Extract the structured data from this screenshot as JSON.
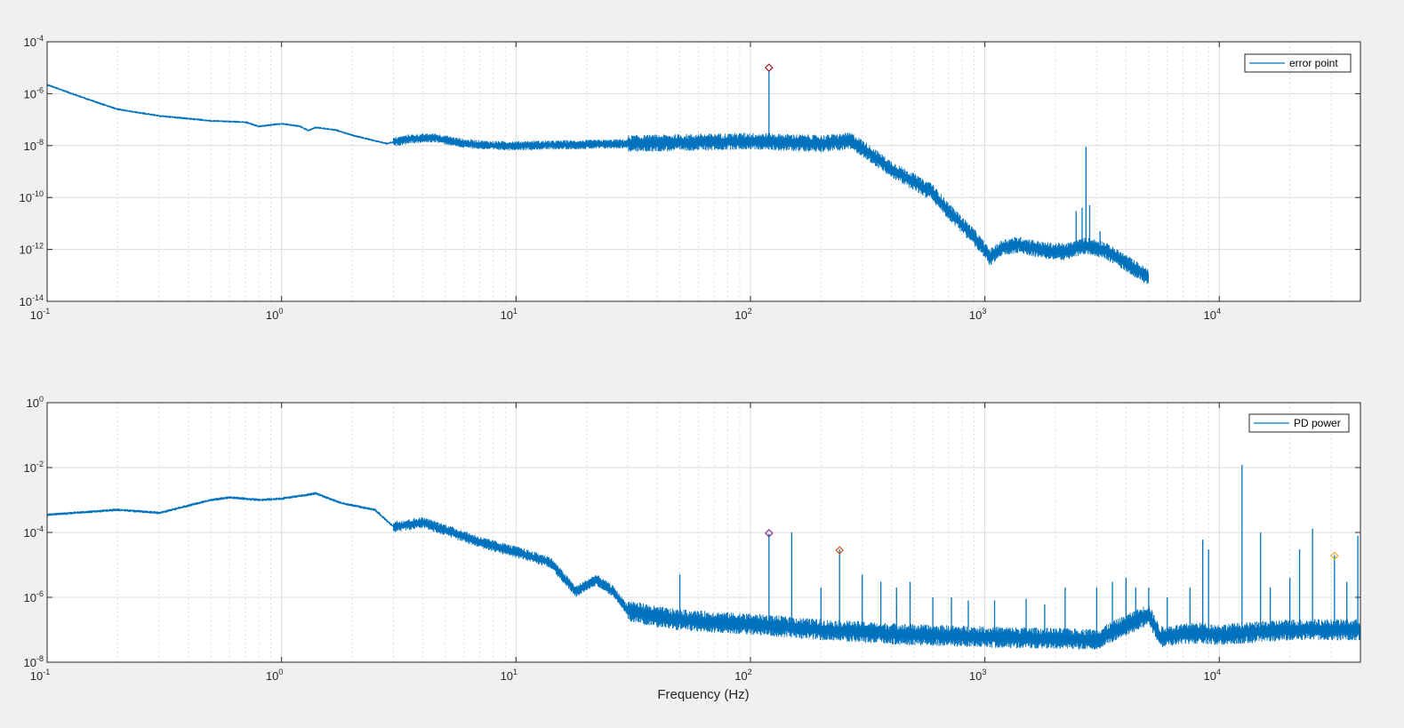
{
  "figure": {
    "background": "#f0f0f0",
    "axes_color": "#262626",
    "grid_color": "#dcdcdc",
    "line_color": "#0072bd"
  },
  "chart_data": [
    {
      "type": "line",
      "name": "top-panel",
      "xscale": "log",
      "yscale": "log",
      "xlim": [
        0.1,
        40000
      ],
      "ylim": [
        1e-14,
        0.0001
      ],
      "x_tick_labels": [
        "10^-1",
        "10^0",
        "10^1",
        "10^2",
        "10^3",
        "10^4"
      ],
      "y_tick_labels": [
        "10^-14",
        "10^-12",
        "10^-10",
        "10^-8",
        "10^-6",
        "10^-4"
      ],
      "grid": "major and minor",
      "legend": {
        "position": "top-right",
        "entries": [
          "error point"
        ]
      },
      "xlabel": "",
      "ylabel": "",
      "series": [
        {
          "name": "error point",
          "color": "#0072bd",
          "x_end": 5000,
          "baseline": [
            [
              0.1,
              2.2e-06
            ],
            [
              0.15,
              6e-07
            ],
            [
              0.2,
              2.5e-07
            ],
            [
              0.3,
              1.4e-07
            ],
            [
              0.5,
              9e-08
            ],
            [
              0.7,
              8e-08
            ],
            [
              0.8,
              5.5e-08
            ],
            [
              1.0,
              7e-08
            ],
            [
              1.2,
              5.5e-08
            ],
            [
              1.3,
              3.8e-08
            ],
            [
              1.4,
              5e-08
            ],
            [
              1.7,
              4e-08
            ],
            [
              2.0,
              2.5e-08
            ],
            [
              2.8,
              1.2e-08
            ],
            [
              3.5,
              1.8e-08
            ],
            [
              4.5,
              2e-08
            ],
            [
              6,
              1.2e-08
            ],
            [
              8,
              1e-08
            ],
            [
              10,
              1e-08
            ],
            [
              20,
              1.1e-08
            ],
            [
              50,
              1.3e-08
            ],
            [
              100,
              1.5e-08
            ],
            [
              200,
              1.2e-08
            ],
            [
              270,
              1.5e-08
            ],
            [
              300,
              8e-09
            ],
            [
              400,
              1.2e-09
            ],
            [
              500,
              4e-10
            ],
            [
              560,
              2e-10
            ],
            [
              580,
              2.2e-10
            ],
            [
              600,
              1.5e-10
            ],
            [
              700,
              3e-11
            ],
            [
              900,
              3e-12
            ],
            [
              1050,
              5e-13
            ],
            [
              1200,
              1.2e-12
            ],
            [
              1400,
              1.5e-12
            ],
            [
              1800,
              9e-13
            ],
            [
              2200,
              8e-13
            ],
            [
              2700,
              1.4e-12
            ],
            [
              3200,
              1e-12
            ],
            [
              4000,
              3e-13
            ],
            [
              5000,
              8e-14
            ]
          ],
          "peaks": [
            [
              120,
              8e-06
            ],
            [
              2700,
              9e-09
            ],
            [
              2600,
              4e-11
            ],
            [
              2800,
              5e-11
            ],
            [
              2450,
              3e-11
            ],
            [
              3100,
              5e-12
            ]
          ]
        }
      ],
      "markers": [
        {
          "x": 120,
          "y": 1e-05,
          "color": "#a2142f"
        }
      ]
    },
    {
      "type": "line",
      "name": "bottom-panel",
      "xscale": "log",
      "yscale": "log",
      "xlim": [
        0.1,
        40000
      ],
      "ylim": [
        1e-08,
        1
      ],
      "x_tick_labels": [
        "10^-1",
        "10^0",
        "10^1",
        "10^2",
        "10^3",
        "10^4"
      ],
      "y_tick_labels": [
        "10^-8",
        "10^-6",
        "10^-4",
        "10^-2",
        "10^0"
      ],
      "grid": "major and minor",
      "legend": {
        "position": "top-right",
        "entries": [
          "PD power"
        ]
      },
      "xlabel": "Frequency (Hz)",
      "ylabel": "",
      "series": [
        {
          "name": "PD power",
          "color": "#0072bd",
          "x_end": 40000,
          "baseline": [
            [
              0.1,
              0.00035
            ],
            [
              0.2,
              0.0005
            ],
            [
              0.3,
              0.0004
            ],
            [
              0.5,
              0.001
            ],
            [
              0.6,
              0.0012
            ],
            [
              0.8,
              0.001
            ],
            [
              1.0,
              0.0011
            ],
            [
              1.4,
              0.0016
            ],
            [
              1.8,
              0.0008
            ],
            [
              2.5,
              0.0005
            ],
            [
              3,
              0.00015
            ],
            [
              4,
              0.0002
            ],
            [
              5,
              0.00012
            ],
            [
              7,
              5e-05
            ],
            [
              10,
              2.5e-05
            ],
            [
              14,
              1.2e-05
            ],
            [
              18,
              1.5e-06
            ],
            [
              22,
              3.5e-06
            ],
            [
              26,
              1.5e-06
            ],
            [
              30,
              4e-07
            ],
            [
              40,
              2.5e-07
            ],
            [
              50,
              2e-07
            ],
            [
              100,
              1.5e-07
            ],
            [
              200,
              1e-07
            ],
            [
              500,
              7e-08
            ],
            [
              1000,
              6e-08
            ],
            [
              3000,
              5e-08
            ],
            [
              5000,
              3e-07
            ],
            [
              5600,
              6e-08
            ],
            [
              8000,
              8e-08
            ],
            [
              10000,
              7e-08
            ],
            [
              20000,
              1e-07
            ],
            [
              40000,
              1e-07
            ]
          ],
          "peaks": [
            [
              50,
              5e-06
            ],
            [
              120,
              9e-05
            ],
            [
              150,
              0.0001
            ],
            [
              200,
              2e-06
            ],
            [
              240,
              3e-05
            ],
            [
              300,
              5e-06
            ],
            [
              360,
              3e-06
            ],
            [
              420,
              2e-06
            ],
            [
              480,
              3e-06
            ],
            [
              600,
              1e-06
            ],
            [
              720,
              1e-06
            ],
            [
              850,
              8e-07
            ],
            [
              1100,
              8e-07
            ],
            [
              1500,
              9e-07
            ],
            [
              1800,
              6e-07
            ],
            [
              2200,
              2e-06
            ],
            [
              3000,
              2e-06
            ],
            [
              3500,
              3e-06
            ],
            [
              4000,
              4e-06
            ],
            [
              4400,
              2e-06
            ],
            [
              5000,
              2e-06
            ],
            [
              6000,
              1e-06
            ],
            [
              7500,
              2e-06
            ],
            [
              8500,
              6e-05
            ],
            [
              9000,
              3e-05
            ],
            [
              12500,
              0.012
            ],
            [
              15000,
              0.0001
            ],
            [
              16500,
              2e-06
            ],
            [
              20000,
              4e-06
            ],
            [
              22000,
              3e-05
            ],
            [
              25000,
              0.00013
            ],
            [
              31000,
              2e-05
            ],
            [
              35000,
              3e-06
            ],
            [
              39000,
              8e-05
            ]
          ]
        }
      ],
      "markers": [
        {
          "x": 120,
          "y": 9.5e-05,
          "color": "#7e2f8e"
        },
        {
          "x": 240,
          "y": 2.8e-05,
          "color": "#d95319"
        },
        {
          "x": 31000,
          "y": 1.9e-05,
          "color": "#edb120"
        }
      ]
    }
  ]
}
